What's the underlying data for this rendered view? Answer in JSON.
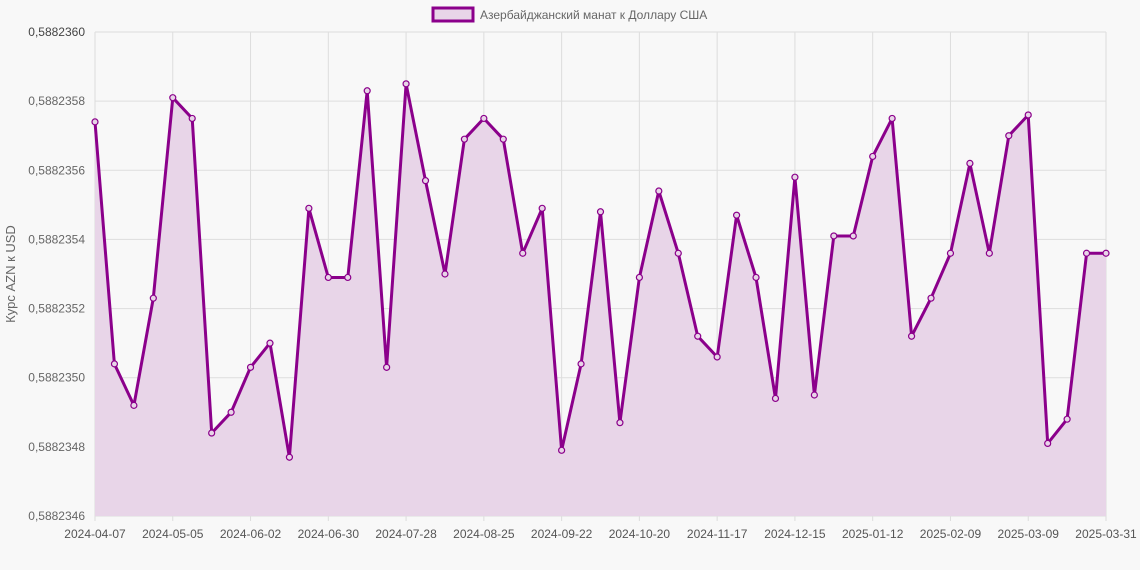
{
  "chart_data": {
    "type": "area",
    "title": "",
    "xlabel": "",
    "ylabel": "Курс AZN к USD",
    "legend": {
      "position": "top",
      "entries": [
        "Азербайджанский манат к Доллару США"
      ]
    },
    "grid": true,
    "ylim": [
      0.5882346,
      0.588236
    ],
    "y_ticks": [
      "0,5882346",
      "0,5882348",
      "0,5882350",
      "0,5882352",
      "0,5882354",
      "0,5882356",
      "0,5882358",
      "0,5882360"
    ],
    "x_tick_labels": [
      "2024-04-07",
      "2024-05-05",
      "2024-06-02",
      "2024-06-30",
      "2024-07-28",
      "2024-08-25",
      "2024-09-22",
      "2024-10-20",
      "2024-11-17",
      "2024-12-15",
      "2025-01-12",
      "2025-02-09",
      "2025-03-09",
      "2025-03-31"
    ],
    "categories": [
      "2024-04-07",
      "2024-04-14",
      "2024-04-21",
      "2024-04-28",
      "2024-05-05",
      "2024-05-12",
      "2024-05-19",
      "2024-05-26",
      "2024-06-02",
      "2024-06-09",
      "2024-06-16",
      "2024-06-23",
      "2024-06-30",
      "2024-07-07",
      "2024-07-14",
      "2024-07-21",
      "2024-07-28",
      "2024-08-04",
      "2024-08-11",
      "2024-08-18",
      "2024-08-25",
      "2024-09-01",
      "2024-09-08",
      "2024-09-15",
      "2024-09-22",
      "2024-09-29",
      "2024-10-06",
      "2024-10-13",
      "2024-10-20",
      "2024-10-27",
      "2024-11-03",
      "2024-11-10",
      "2024-11-17",
      "2024-11-24",
      "2024-12-01",
      "2024-12-08",
      "2024-12-15",
      "2024-12-22",
      "2024-12-29",
      "2025-01-05",
      "2025-01-12",
      "2025-01-19",
      "2025-01-26",
      "2025-02-02",
      "2025-02-09",
      "2025-02-16",
      "2025-02-23",
      "2025-03-02",
      "2025-03-09",
      "2025-03-16",
      "2025-03-23",
      "2025-03-30",
      "2025-03-31"
    ],
    "series": [
      {
        "name": "Азербайджанский манат к Доллару США",
        "color": "#8b008b",
        "fill": "#e8d5e8",
        "values": [
          0.58823574,
          0.58823504,
          0.58823492,
          0.58823523,
          0.58823581,
          0.58823575,
          0.58823484,
          0.5882349,
          0.58823503,
          0.5882351,
          0.58823477,
          0.58823549,
          0.58823529,
          0.58823529,
          0.58823583,
          0.58823503,
          0.58823585,
          0.58823557,
          0.5882353,
          0.58823569,
          0.58823575,
          0.58823569,
          0.58823536,
          0.58823549,
          0.58823479,
          0.58823504,
          0.58823548,
          0.58823487,
          0.58823529,
          0.58823554,
          0.58823536,
          0.58823512,
          0.58823506,
          0.58823547,
          0.58823529,
          0.58823494,
          0.58823558,
          0.58823495,
          0.58823541,
          0.58823541,
          0.58823564,
          0.58823575,
          0.58823512,
          0.58823523,
          0.58823536,
          0.58823562,
          0.58823536,
          0.5882357,
          0.58823576,
          0.58823481,
          0.58823488,
          0.58823536,
          0.58823536
        ]
      }
    ]
  }
}
